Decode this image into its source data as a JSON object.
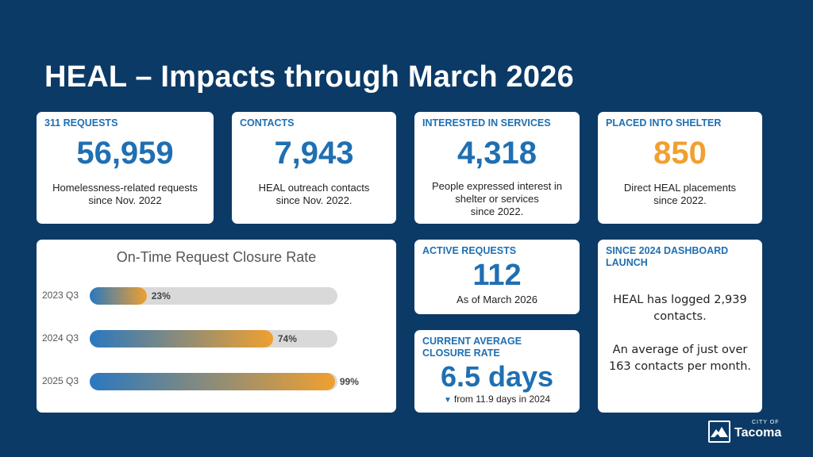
{
  "title": "HEAL – Impacts through March 2026",
  "cards": {
    "requests": {
      "label": "311 REQUESTS",
      "value": "56,959",
      "desc_1": "Homelessness-related requests",
      "desc_2": "since Nov. 2022"
    },
    "contacts": {
      "label": "CONTACTS",
      "value": "7,943",
      "desc_1": "HEAL outreach contacts",
      "desc_2": "since Nov. 2022."
    },
    "interested": {
      "label": "INTERESTED IN SERVICES",
      "value": "4,318",
      "desc_1": "People expressed interest in",
      "desc_2": "shelter or services",
      "desc_3": "since 2022."
    },
    "shelter": {
      "label": "PLACED INTO SHELTER",
      "value": "850",
      "desc_1": "Direct HEAL placements",
      "desc_2": "since 2022."
    },
    "active": {
      "label": "ACTIVE REQUESTS",
      "value": "112",
      "desc": "As of March 2026"
    },
    "closure": {
      "label_1": "CURRENT AVERAGE",
      "label_2": "CLOSURE RATE",
      "value": "6.5 days",
      "delta": "from 11.9 days in 2024"
    },
    "since_launch": {
      "label_1": "SINCE 2024 DASHBOARD",
      "label_2": "LAUNCH",
      "text_1": "HEAL has logged 2,939",
      "text_2": "contacts.",
      "text_3": "An average of just over",
      "text_4": "163 contacts per month."
    }
  },
  "chart_data": {
    "type": "bar",
    "orientation": "horizontal",
    "title": "On-Time Request Closure Rate",
    "categories": [
      "2023 Q3",
      "2024 Q3",
      "2025 Q3"
    ],
    "values": [
      23,
      74,
      99
    ],
    "value_labels": [
      "23%",
      "74%",
      "99%"
    ],
    "xlim": [
      0,
      100
    ],
    "grid": false
  },
  "logo": {
    "small": "CITY OF",
    "name": "Tacoma"
  },
  "colors": {
    "background": "#0c3a66",
    "accent": "#1f6fb2",
    "highlight": "#f0a030",
    "track": "#d9d9d9"
  }
}
